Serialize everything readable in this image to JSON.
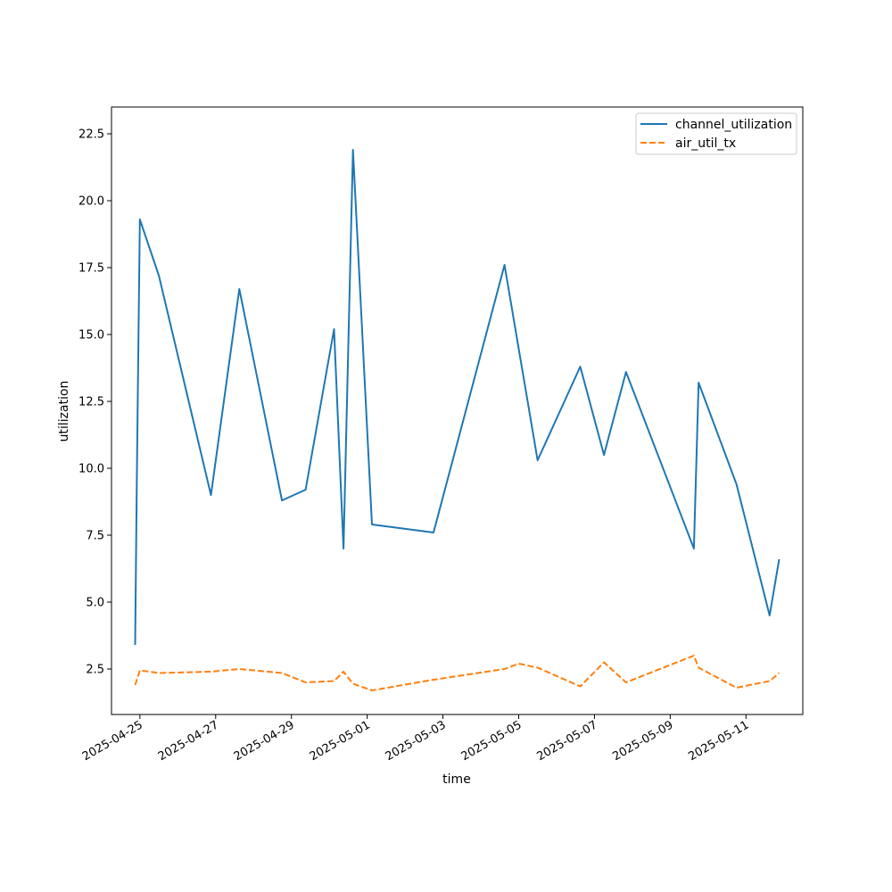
{
  "chart_data": {
    "type": "line",
    "xlabel": "time",
    "ylabel": "utilization",
    "x_tick_labels": [
      "2025-04-25",
      "2025-04-27",
      "2025-04-29",
      "2025-05-01",
      "2025-05-03",
      "2025-05-05",
      "2025-05-07",
      "2025-05-09",
      "2025-05-11"
    ],
    "y_tick_labels": [
      "2.5",
      "5.0",
      "7.5",
      "10.0",
      "12.5",
      "15.0",
      "17.5",
      "20.0",
      "22.5"
    ],
    "y_ticks": [
      2.5,
      5.0,
      7.5,
      10.0,
      12.5,
      15.0,
      17.5,
      20.0,
      22.5
    ],
    "xlim": [
      "2025-04-24T06:00",
      "2025-05-12T12:00"
    ],
    "ylim": [
      0.8,
      23.5
    ],
    "grid": false,
    "legend_position": "top-right",
    "series": [
      {
        "name": "channel_utilization",
        "color": "#1f77b4",
        "style": "solid",
        "points": [
          [
            "2025-04-24T21:00",
            3.4
          ],
          [
            "2025-04-24T22:00",
            9.3
          ],
          [
            "2025-04-24T23:00",
            14.5
          ],
          [
            "2025-04-25T00:00",
            19.3
          ],
          [
            "2025-04-25T12:00",
            17.2
          ],
          [
            "2025-04-26T21:00",
            9.0
          ],
          [
            "2025-04-27T15:00",
            16.7
          ],
          [
            "2025-04-28T18:00",
            8.8
          ],
          [
            "2025-04-29T09:00",
            9.2
          ],
          [
            "2025-04-30T03:00",
            15.2
          ],
          [
            "2025-04-30T09:00",
            7.0
          ],
          [
            "2025-04-30T15:00",
            21.9
          ],
          [
            "2025-05-01T03:00",
            7.9
          ],
          [
            "2025-05-02T18:00",
            7.6
          ],
          [
            "2025-05-04T15:00",
            17.6
          ],
          [
            "2025-05-05T12:00",
            10.3
          ],
          [
            "2025-05-06T15:00",
            13.8
          ],
          [
            "2025-05-07T06:00",
            10.5
          ],
          [
            "2025-05-07T20:00",
            13.6
          ],
          [
            "2025-05-09T15:00",
            7.0
          ],
          [
            "2025-05-09T18:00",
            13.2
          ],
          [
            "2025-05-10T18:00",
            9.4
          ],
          [
            "2025-05-11T15:00",
            4.5
          ],
          [
            "2025-05-11T21:00",
            6.6
          ]
        ]
      },
      {
        "name": "air_util_tx",
        "color": "#ff7f0e",
        "style": "dashed",
        "points": [
          [
            "2025-04-24T21:00",
            1.9
          ],
          [
            "2025-04-25T00:00",
            2.45
          ],
          [
            "2025-04-25T12:00",
            2.35
          ],
          [
            "2025-04-26T21:00",
            2.4
          ],
          [
            "2025-04-27T15:00",
            2.5
          ],
          [
            "2025-04-28T18:00",
            2.35
          ],
          [
            "2025-04-29T09:00",
            2.0
          ],
          [
            "2025-04-30T03:00",
            2.05
          ],
          [
            "2025-04-30T09:00",
            2.4
          ],
          [
            "2025-04-30T15:00",
            1.95
          ],
          [
            "2025-05-01T03:00",
            1.7
          ],
          [
            "2025-05-02T18:00",
            2.1
          ],
          [
            "2025-05-04T15:00",
            2.5
          ],
          [
            "2025-05-05T00:00",
            2.7
          ],
          [
            "2025-05-05T12:00",
            2.55
          ],
          [
            "2025-05-06T15:00",
            1.85
          ],
          [
            "2025-05-07T06:00",
            2.75
          ],
          [
            "2025-05-07T20:00",
            2.0
          ],
          [
            "2025-05-09T15:00",
            3.0
          ],
          [
            "2025-05-09T18:00",
            2.55
          ],
          [
            "2025-05-10T18:00",
            1.8
          ],
          [
            "2025-05-11T15:00",
            2.05
          ],
          [
            "2025-05-11T21:00",
            2.35
          ]
        ]
      }
    ]
  }
}
